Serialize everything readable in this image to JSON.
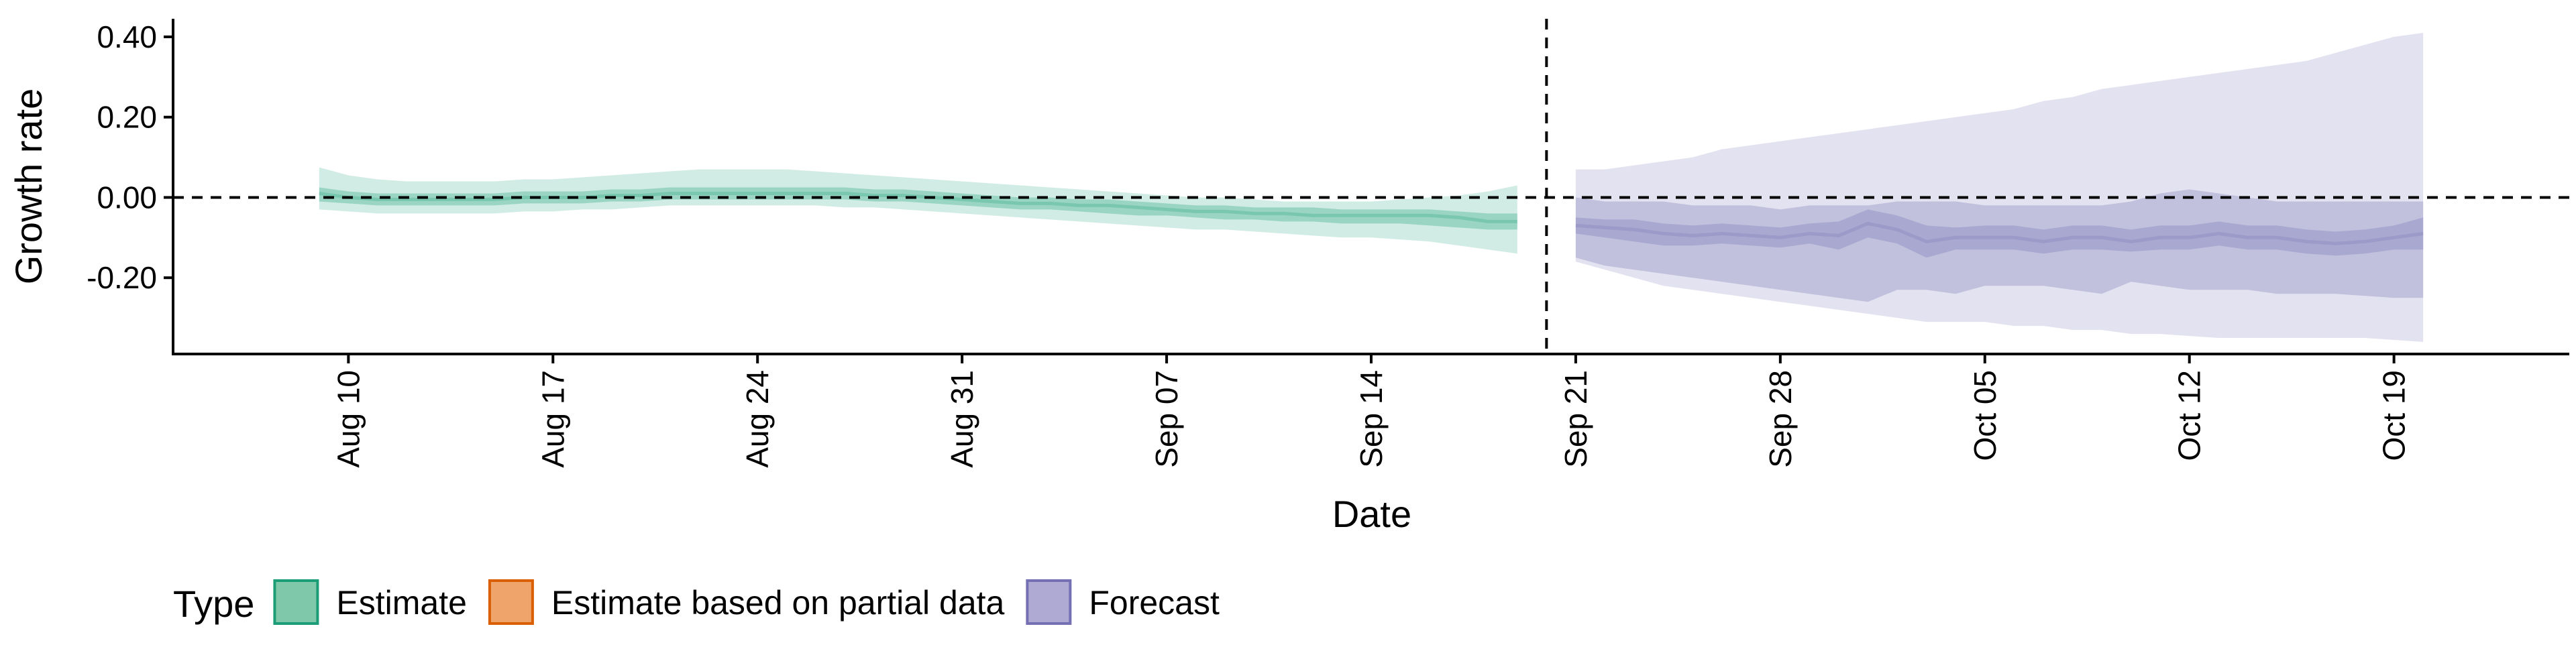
{
  "chart_data": {
    "type": "area",
    "title": "",
    "xlabel": "Date",
    "ylabel": "Growth rate",
    "x_range": [
      "2020-08-04",
      "2020-10-25"
    ],
    "ylim": [
      -0.39,
      0.445
    ],
    "y_ticks": [
      0.4,
      0.2,
      0.0,
      -0.2
    ],
    "y_tick_labels": [
      "0.40",
      "0.20",
      "0.00",
      "-0.20"
    ],
    "x_ticks": [
      "2020-08-10",
      "2020-08-17",
      "2020-08-24",
      "2020-08-31",
      "2020-09-07",
      "2020-09-14",
      "2020-09-21",
      "2020-09-28",
      "2020-10-05",
      "2020-10-12",
      "2020-10-19"
    ],
    "x_tick_labels": [
      "Aug 10",
      "Aug 17",
      "Aug 24",
      "Aug 31",
      "Sep 07",
      "Sep 14",
      "Sep 21",
      "Sep 28",
      "Oct 05",
      "Oct 12",
      "Oct 19"
    ],
    "reference_lines": {
      "horizontal_y": 0,
      "vertical_date": "2020-09-20"
    },
    "grid": false,
    "legend": {
      "title": "Type",
      "position": "bottom-left",
      "entries": [
        {
          "label": "Estimate",
          "fill": "#7fc8a9",
          "stroke": "#1b9e77"
        },
        {
          "label": "Estimate based on partial data",
          "fill": "#eea46a",
          "stroke": "#d95f02"
        },
        {
          "label": "Forecast",
          "fill": "#aeaad3",
          "stroke": "#7570b3"
        }
      ]
    },
    "series": [
      {
        "name": "Estimate",
        "color": "#1b9e77",
        "x": [
          "2020-08-09",
          "2020-08-10",
          "2020-08-11",
          "2020-08-12",
          "2020-08-13",
          "2020-08-14",
          "2020-08-15",
          "2020-08-16",
          "2020-08-17",
          "2020-08-18",
          "2020-08-19",
          "2020-08-20",
          "2020-08-21",
          "2020-08-22",
          "2020-08-23",
          "2020-08-24",
          "2020-08-25",
          "2020-08-26",
          "2020-08-27",
          "2020-08-28",
          "2020-08-29",
          "2020-08-30",
          "2020-08-31",
          "2020-09-01",
          "2020-09-02",
          "2020-09-03",
          "2020-09-04",
          "2020-09-05",
          "2020-09-06",
          "2020-09-07",
          "2020-09-08",
          "2020-09-09",
          "2020-09-10",
          "2020-09-11",
          "2020-09-12",
          "2020-09-13",
          "2020-09-14",
          "2020-09-15",
          "2020-09-16",
          "2020-09-17",
          "2020-09-18",
          "2020-09-19"
        ],
        "median": [
          0.01,
          0.0,
          -0.005,
          -0.005,
          -0.005,
          -0.005,
          -0.005,
          0.0,
          0.0,
          0.0,
          0.005,
          0.005,
          0.01,
          0.01,
          0.01,
          0.01,
          0.01,
          0.01,
          0.01,
          0.005,
          0.005,
          0.0,
          -0.005,
          -0.01,
          -0.015,
          -0.015,
          -0.02,
          -0.02,
          -0.025,
          -0.03,
          -0.035,
          -0.035,
          -0.04,
          -0.04,
          -0.045,
          -0.045,
          -0.045,
          -0.045,
          -0.045,
          -0.05,
          -0.06,
          -0.06
        ],
        "lower_50": [
          -0.01,
          -0.015,
          -0.02,
          -0.02,
          -0.02,
          -0.02,
          -0.02,
          -0.015,
          -0.015,
          -0.015,
          -0.01,
          -0.01,
          -0.005,
          -0.005,
          -0.005,
          -0.005,
          -0.005,
          -0.005,
          -0.005,
          -0.01,
          -0.01,
          -0.015,
          -0.02,
          -0.025,
          -0.03,
          -0.03,
          -0.035,
          -0.04,
          -0.045,
          -0.045,
          -0.05,
          -0.055,
          -0.055,
          -0.06,
          -0.06,
          -0.065,
          -0.065,
          -0.065,
          -0.07,
          -0.075,
          -0.08,
          -0.08
        ],
        "upper_50": [
          0.025,
          0.015,
          0.01,
          0.01,
          0.01,
          0.01,
          0.01,
          0.015,
          0.015,
          0.015,
          0.02,
          0.02,
          0.025,
          0.025,
          0.025,
          0.025,
          0.025,
          0.025,
          0.025,
          0.02,
          0.02,
          0.015,
          0.01,
          0.005,
          0.0,
          0.0,
          -0.005,
          -0.005,
          -0.01,
          -0.015,
          -0.02,
          -0.02,
          -0.025,
          -0.025,
          -0.025,
          -0.03,
          -0.03,
          -0.03,
          -0.03,
          -0.035,
          -0.04,
          -0.04
        ],
        "lower_90": [
          -0.03,
          -0.035,
          -0.04,
          -0.04,
          -0.04,
          -0.04,
          -0.04,
          -0.035,
          -0.035,
          -0.03,
          -0.03,
          -0.025,
          -0.02,
          -0.02,
          -0.02,
          -0.02,
          -0.02,
          -0.02,
          -0.025,
          -0.025,
          -0.03,
          -0.035,
          -0.04,
          -0.045,
          -0.05,
          -0.055,
          -0.06,
          -0.065,
          -0.07,
          -0.075,
          -0.08,
          -0.08,
          -0.085,
          -0.09,
          -0.095,
          -0.1,
          -0.1,
          -0.105,
          -0.11,
          -0.12,
          -0.13,
          -0.14
        ],
        "upper_90": [
          0.075,
          0.055,
          0.045,
          0.04,
          0.04,
          0.04,
          0.04,
          0.045,
          0.045,
          0.05,
          0.055,
          0.06,
          0.065,
          0.07,
          0.07,
          0.07,
          0.07,
          0.065,
          0.06,
          0.055,
          0.05,
          0.045,
          0.04,
          0.035,
          0.03,
          0.025,
          0.02,
          0.015,
          0.01,
          0.005,
          0.0,
          0.0,
          -0.005,
          -0.01,
          -0.01,
          -0.01,
          -0.01,
          -0.005,
          0.0,
          0.005,
          0.015,
          0.03
        ]
      },
      {
        "name": "Forecast",
        "color": "#7570b3",
        "x": [
          "2020-09-21",
          "2020-09-22",
          "2020-09-23",
          "2020-09-24",
          "2020-09-25",
          "2020-09-26",
          "2020-09-27",
          "2020-09-28",
          "2020-09-29",
          "2020-09-30",
          "2020-10-01",
          "2020-10-02",
          "2020-10-03",
          "2020-10-04",
          "2020-10-05",
          "2020-10-06",
          "2020-10-07",
          "2020-10-08",
          "2020-10-09",
          "2020-10-10",
          "2020-10-11",
          "2020-10-12",
          "2020-10-13",
          "2020-10-14",
          "2020-10-15",
          "2020-10-16",
          "2020-10-17",
          "2020-10-18",
          "2020-10-19",
          "2020-10-20"
        ],
        "median": [
          -0.07,
          -0.075,
          -0.08,
          -0.09,
          -0.095,
          -0.09,
          -0.095,
          -0.1,
          -0.09,
          -0.095,
          -0.065,
          -0.08,
          -0.11,
          -0.1,
          -0.1,
          -0.1,
          -0.11,
          -0.1,
          -0.1,
          -0.11,
          -0.1,
          -0.1,
          -0.09,
          -0.1,
          -0.1,
          -0.11,
          -0.115,
          -0.11,
          -0.1,
          -0.09
        ],
        "lower_50": [
          -0.09,
          -0.1,
          -0.11,
          -0.12,
          -0.12,
          -0.115,
          -0.12,
          -0.125,
          -0.115,
          -0.13,
          -0.1,
          -0.115,
          -0.15,
          -0.13,
          -0.13,
          -0.13,
          -0.14,
          -0.13,
          -0.13,
          -0.135,
          -0.13,
          -0.13,
          -0.12,
          -0.13,
          -0.13,
          -0.14,
          -0.145,
          -0.14,
          -0.13,
          -0.13
        ],
        "upper_50": [
          -0.05,
          -0.055,
          -0.055,
          -0.065,
          -0.07,
          -0.065,
          -0.07,
          -0.075,
          -0.065,
          -0.06,
          -0.03,
          -0.045,
          -0.07,
          -0.075,
          -0.07,
          -0.07,
          -0.08,
          -0.07,
          -0.07,
          -0.08,
          -0.07,
          -0.07,
          -0.06,
          -0.07,
          -0.07,
          -0.08,
          -0.085,
          -0.08,
          -0.07,
          -0.05
        ],
        "lower_75": [
          -0.15,
          -0.17,
          -0.18,
          -0.19,
          -0.2,
          -0.21,
          -0.22,
          -0.23,
          -0.24,
          -0.25,
          -0.26,
          -0.23,
          -0.23,
          -0.24,
          -0.22,
          -0.22,
          -0.22,
          -0.23,
          -0.24,
          -0.21,
          -0.22,
          -0.23,
          -0.23,
          -0.23,
          -0.24,
          -0.24,
          -0.24,
          -0.245,
          -0.25,
          -0.25
        ],
        "upper_75": [
          0.0,
          -0.01,
          -0.01,
          -0.01,
          -0.02,
          -0.02,
          -0.02,
          -0.03,
          -0.02,
          -0.02,
          -0.02,
          -0.01,
          -0.01,
          -0.01,
          -0.02,
          -0.02,
          -0.02,
          -0.02,
          -0.02,
          -0.01,
          0.01,
          0.02,
          0.01,
          0.0,
          -0.01,
          -0.01,
          -0.01,
          -0.01,
          -0.01,
          -0.01
        ],
        "lower_90": [
          -0.16,
          -0.18,
          -0.2,
          -0.22,
          -0.23,
          -0.24,
          -0.25,
          -0.26,
          -0.27,
          -0.28,
          -0.29,
          -0.3,
          -0.31,
          -0.31,
          -0.31,
          -0.32,
          -0.32,
          -0.33,
          -0.33,
          -0.34,
          -0.34,
          -0.345,
          -0.35,
          -0.35,
          -0.35,
          -0.35,
          -0.35,
          -0.35,
          -0.355,
          -0.36
        ],
        "upper_90": [
          0.07,
          0.07,
          0.08,
          0.09,
          0.1,
          0.12,
          0.13,
          0.14,
          0.15,
          0.16,
          0.17,
          0.18,
          0.19,
          0.2,
          0.21,
          0.22,
          0.24,
          0.25,
          0.27,
          0.28,
          0.29,
          0.3,
          0.31,
          0.32,
          0.33,
          0.34,
          0.36,
          0.38,
          0.4,
          0.41
        ]
      }
    ]
  }
}
